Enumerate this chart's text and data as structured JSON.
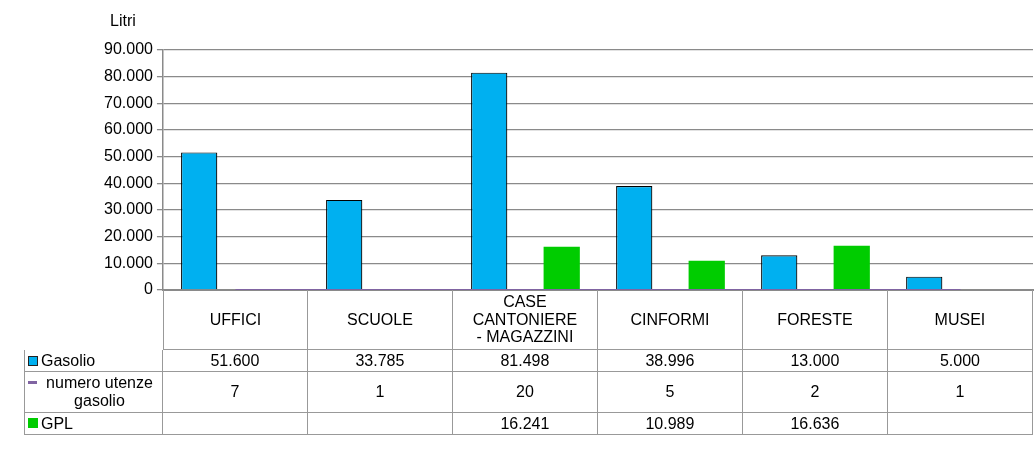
{
  "chart_data": {
    "type": "bar",
    "ylabel": "Litri",
    "categories": [
      "UFFICI",
      "SCUOLE",
      "CASE CANTONIERE - MAGAZZINI",
      "CINFORMI",
      "FORESTE",
      "MUSEI"
    ],
    "series": [
      {
        "name": "Gasolio",
        "color": "#00b0f0",
        "values": [
          51600,
          33785,
          81498,
          38996,
          13000,
          5000
        ],
        "value_labels": [
          "51.600",
          "33.785",
          "81.498",
          "38.996",
          "13.000",
          "5.000"
        ]
      },
      {
        "name": "numero utenze gasolio",
        "type": "line",
        "color": "#8064a2",
        "values": [
          7,
          1,
          20,
          5,
          2,
          1
        ],
        "value_labels": [
          "7",
          "1",
          "20",
          "5",
          "2",
          "1"
        ]
      },
      {
        "name": "GPL",
        "color": "#00cc00",
        "values": [
          null,
          null,
          16241,
          10989,
          16636,
          null
        ],
        "value_labels": [
          null,
          null,
          "16.241",
          "10.989",
          "16.636",
          null
        ]
      }
    ],
    "ylim": [
      0,
      90000
    ],
    "yticks": [
      {
        "value": 0,
        "label": "0"
      },
      {
        "value": 10000,
        "label": "10.000"
      },
      {
        "value": 20000,
        "label": "20.000"
      },
      {
        "value": 30000,
        "label": "30.000"
      },
      {
        "value": 40000,
        "label": "40.000"
      },
      {
        "value": 50000,
        "label": "50.000"
      },
      {
        "value": 60000,
        "label": "60.000"
      },
      {
        "value": 70000,
        "label": "70.000"
      },
      {
        "value": 80000,
        "label": "80.000"
      },
      {
        "value": 90000,
        "label": "90.000"
      }
    ],
    "grid": "y",
    "legend": "bottom",
    "marker": "none"
  }
}
